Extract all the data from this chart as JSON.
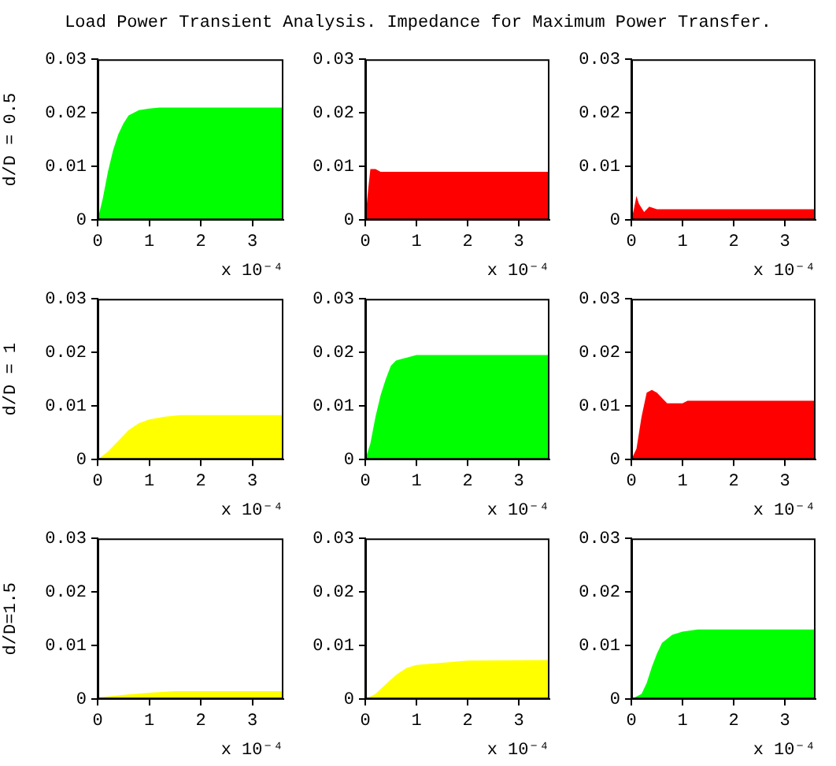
{
  "chart_data": [
    {
      "type": "area",
      "title": "Load Power Transient Analysis. Impedance for Maximum Power Transfer.",
      "ylabel": "d/D = 0.5",
      "xlabel": "x 10⁻⁴",
      "xlim": [
        0,
        3.6
      ],
      "ylim": [
        0,
        0.03
      ],
      "xticks": [
        0,
        1,
        2,
        3
      ],
      "yticks": [
        0,
        0.01,
        0.02,
        0.03
      ],
      "grid": false,
      "legend": false,
      "series": [
        {
          "color": "#00ff00",
          "x": [
            0,
            0.1,
            0.2,
            0.3,
            0.4,
            0.5,
            0.6,
            0.8,
            1.0,
            1.2,
            3.6
          ],
          "values": [
            0,
            0.004,
            0.009,
            0.013,
            0.016,
            0.018,
            0.0195,
            0.0205,
            0.0208,
            0.021,
            0.021
          ]
        }
      ]
    },
    {
      "type": "area",
      "xlabel": "x 10⁻⁴",
      "xlim": [
        0,
        3.6
      ],
      "ylim": [
        0,
        0.03
      ],
      "xticks": [
        0,
        1,
        2,
        3
      ],
      "yticks": [
        0,
        0.01,
        0.02,
        0.03
      ],
      "grid": false,
      "legend": false,
      "series": [
        {
          "color": "#ff0000",
          "x": [
            0,
            0.03,
            0.06,
            0.1,
            0.2,
            0.3,
            3.6
          ],
          "values": [
            0,
            0.003,
            0.006,
            0.0095,
            0.0095,
            0.009,
            0.009
          ]
        }
      ]
    },
    {
      "type": "area",
      "xlabel": "x 10⁻⁴",
      "xlim": [
        0,
        3.6
      ],
      "ylim": [
        0,
        0.03
      ],
      "xticks": [
        0,
        1,
        2,
        3
      ],
      "yticks": [
        0,
        0.01,
        0.02,
        0.03
      ],
      "grid": false,
      "legend": false,
      "series": [
        {
          "color": "#ff0000",
          "x": [
            0,
            0.05,
            0.1,
            0.15,
            0.25,
            0.35,
            0.5,
            3.6
          ],
          "values": [
            0,
            0.002,
            0.0045,
            0.003,
            0.0015,
            0.0025,
            0.002,
            0.002
          ]
        }
      ]
    },
    {
      "type": "area",
      "ylabel": "d/D = 1",
      "xlabel": "x 10⁻⁴",
      "xlim": [
        0,
        3.6
      ],
      "ylim": [
        0,
        0.03
      ],
      "xticks": [
        0,
        1,
        2,
        3
      ],
      "yticks": [
        0,
        0.01,
        0.02,
        0.03
      ],
      "grid": false,
      "legend": false,
      "series": [
        {
          "color": "#ffff00",
          "x": [
            0,
            0.2,
            0.4,
            0.6,
            0.8,
            1.0,
            1.3,
            1.6,
            3.6
          ],
          "values": [
            0,
            0.0015,
            0.0035,
            0.0055,
            0.0068,
            0.0075,
            0.008,
            0.0083,
            0.0083
          ]
        }
      ]
    },
    {
      "type": "area",
      "xlabel": "x 10⁻⁴",
      "xlim": [
        0,
        3.6
      ],
      "ylim": [
        0,
        0.03
      ],
      "xticks": [
        0,
        1,
        2,
        3
      ],
      "yticks": [
        0,
        0.01,
        0.02,
        0.03
      ],
      "grid": false,
      "legend": false,
      "series": [
        {
          "color": "#00ff00",
          "x": [
            0,
            0.1,
            0.2,
            0.3,
            0.4,
            0.5,
            0.6,
            0.8,
            1.0,
            3.6
          ],
          "values": [
            0,
            0.003,
            0.008,
            0.012,
            0.015,
            0.0175,
            0.0185,
            0.019,
            0.0195,
            0.0195
          ]
        }
      ]
    },
    {
      "type": "area",
      "xlabel": "x 10⁻⁴",
      "xlim": [
        0,
        3.6
      ],
      "ylim": [
        0,
        0.03
      ],
      "xticks": [
        0,
        1,
        2,
        3
      ],
      "yticks": [
        0,
        0.01,
        0.02,
        0.03
      ],
      "grid": false,
      "legend": false,
      "series": [
        {
          "color": "#ff0000",
          "x": [
            0,
            0.1,
            0.2,
            0.3,
            0.4,
            0.5,
            0.7,
            1.0,
            1.1,
            3.6
          ],
          "values": [
            0,
            0.002,
            0.008,
            0.0125,
            0.013,
            0.0125,
            0.0105,
            0.0105,
            0.011,
            0.011
          ]
        }
      ]
    },
    {
      "type": "area",
      "ylabel": "d/D=1.5",
      "xlabel": "x 10⁻⁴",
      "xlim": [
        0,
        3.6
      ],
      "ylim": [
        0,
        0.03
      ],
      "xticks": [
        0,
        1,
        2,
        3
      ],
      "yticks": [
        0,
        0.01,
        0.02,
        0.03
      ],
      "grid": false,
      "legend": false,
      "series": [
        {
          "color": "#ffff00",
          "x": [
            0,
            0.5,
            1.0,
            1.5,
            3.6
          ],
          "values": [
            0.0003,
            0.0008,
            0.0012,
            0.0015,
            0.0015
          ]
        }
      ]
    },
    {
      "type": "area",
      "xlabel": "x 10⁻⁴",
      "xlim": [
        0,
        3.6
      ],
      "ylim": [
        0,
        0.03
      ],
      "xticks": [
        0,
        1,
        2,
        3
      ],
      "yticks": [
        0,
        0.01,
        0.02,
        0.03
      ],
      "grid": false,
      "legend": false,
      "series": [
        {
          "color": "#ffff00",
          "x": [
            0,
            0.2,
            0.4,
            0.6,
            0.8,
            1.0,
            1.5,
            2.0,
            3.6
          ],
          "values": [
            0,
            0.001,
            0.0028,
            0.0045,
            0.0058,
            0.0064,
            0.0068,
            0.0072,
            0.0073
          ]
        }
      ]
    },
    {
      "type": "area",
      "xlabel": "x 10⁻⁴",
      "xlim": [
        0,
        3.6
      ],
      "ylim": [
        0,
        0.03
      ],
      "xticks": [
        0,
        1,
        2,
        3
      ],
      "yticks": [
        0,
        0.01,
        0.02,
        0.03
      ],
      "grid": false,
      "legend": false,
      "series": [
        {
          "color": "#00ff00",
          "x": [
            0,
            0.2,
            0.3,
            0.4,
            0.5,
            0.6,
            0.8,
            1.0,
            1.3,
            3.6
          ],
          "values": [
            0,
            0.001,
            0.003,
            0.006,
            0.0085,
            0.0105,
            0.012,
            0.0126,
            0.013,
            0.013
          ]
        }
      ]
    }
  ]
}
